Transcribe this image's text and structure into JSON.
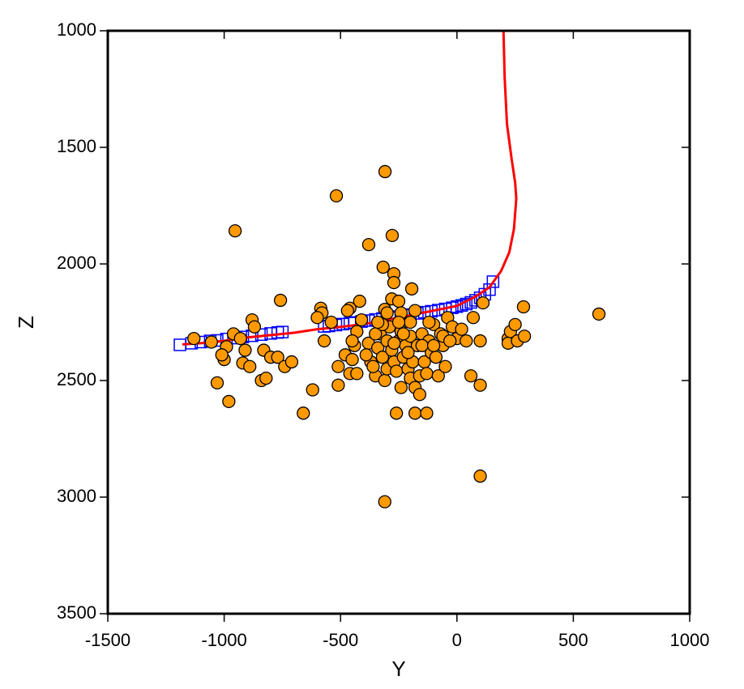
{
  "chart_data": {
    "type": "scatter",
    "x_label": "Y",
    "y_label": "Z",
    "xlim": [
      -1500,
      1000
    ],
    "ylim": [
      3500,
      1000
    ],
    "xticks": [
      -1500,
      -1000,
      -500,
      0,
      500,
      1000
    ],
    "yticks": [
      1000,
      1500,
      2000,
      2500,
      3000,
      3500
    ],
    "grid": false,
    "series": [
      {
        "marker": "square",
        "color": "#0000ff",
        "x": [
          -1190,
          -1140,
          -1100,
          -1060,
          -1030,
          -990,
          -960,
          -920,
          -880,
          -840,
          -800,
          -770,
          -750,
          -570,
          -550,
          -520,
          -490,
          -460,
          -440,
          -410,
          -380,
          -350,
          -320,
          -290,
          -260,
          -230,
          -200,
          -170,
          -140,
          -110,
          -80,
          -50,
          -20,
          0,
          20,
          40,
          60,
          80,
          100,
          120,
          140,
          155
        ],
        "values": [
          2347,
          2340,
          2335,
          2330,
          2328,
          2322,
          2318,
          2313,
          2308,
          2303,
          2298,
          2294,
          2292,
          2268,
          2266,
          2262,
          2258,
          2254,
          2251,
          2247,
          2243,
          2238,
          2234,
          2230,
          2226,
          2221,
          2217,
          2212,
          2207,
          2203,
          2198,
          2193,
          2188,
          2183,
          2178,
          2172,
          2165,
          2156,
          2145,
          2130,
          2110,
          2076
        ]
      },
      {
        "marker": "line",
        "color": "#ff0000",
        "x": [
          200,
          205,
          215,
          235,
          250,
          255,
          245,
          225,
          190,
          140,
          80,
          0,
          -100,
          -200,
          -300,
          -400,
          -500,
          -600,
          -700,
          -800,
          -900,
          -1000,
          -1100,
          -1180
        ],
        "values": [
          1000,
          1200,
          1400,
          1550,
          1650,
          1720,
          1850,
          1950,
          2030,
          2100,
          2140,
          2180,
          2200,
          2220,
          2240,
          2258,
          2270,
          2280,
          2295,
          2305,
          2315,
          2330,
          2340,
          2345
        ]
      },
      {
        "marker": "circle",
        "color": "#ff9900",
        "x": [
          -309,
          -518,
          -953,
          -379,
          -278,
          -317,
          -271,
          -271,
          -194,
          -758,
          112,
          286,
          610,
          -418,
          -280,
          -250,
          -585,
          -460,
          -310,
          -580,
          -240,
          -880,
          -1130,
          -1055,
          -960,
          -930,
          -990,
          -1000,
          -1010,
          -920,
          -890,
          -910,
          -870,
          -830,
          -800,
          -770,
          -740,
          -710,
          -840,
          -820,
          -1030,
          -980,
          -620,
          -660,
          -570,
          -510,
          -510,
          -480,
          -460,
          -430,
          -450,
          -440,
          -430,
          -410,
          -380,
          -370,
          -350,
          -340,
          -330,
          -320,
          -310,
          -300,
          -300,
          -290,
          -280,
          -270,
          -260,
          -260,
          -250,
          -240,
          -240,
          -230,
          -220,
          -210,
          -200,
          -200,
          -190,
          -180,
          -180,
          -170,
          -160,
          -160,
          -150,
          -140,
          -130,
          -130,
          -120,
          -110,
          -100,
          -90,
          -80,
          -70,
          -60,
          -50,
          -40,
          -20,
          0,
          20,
          40,
          60,
          70,
          100,
          100,
          100,
          220,
          220,
          230,
          250,
          260,
          290,
          -310,
          -200,
          -350,
          -390,
          -450,
          -470,
          -540,
          -600,
          -230,
          -210,
          -250,
          -300,
          -320,
          -150,
          -120,
          -60,
          -30,
          -100,
          -180,
          -270,
          -340,
          -360
        ],
        "values": [
          1604,
          1708,
          1858,
          1917,
          1878,
          2014,
          2042,
          2080,
          2107,
          2156,
          2167,
          2184,
          2215,
          2160,
          2150,
          2160,
          2190,
          2190,
          2195,
          2210,
          2210,
          2240,
          2320,
          2335,
          2300,
          2320,
          2355,
          2410,
          2390,
          2425,
          2440,
          2370,
          2270,
          2370,
          2400,
          2400,
          2440,
          2420,
          2500,
          2490,
          2510,
          2590,
          2540,
          2640,
          2330,
          2440,
          2520,
          2390,
          2470,
          2470,
          2410,
          2350,
          2290,
          2240,
          2340,
          2420,
          2480,
          2360,
          2300,
          2400,
          2500,
          2450,
          2330,
          2270,
          2370,
          2420,
          2460,
          2640,
          2330,
          2530,
          2290,
          2400,
          2350,
          2450,
          2490,
          2310,
          2420,
          2530,
          2640,
          2350,
          2560,
          2480,
          2300,
          2420,
          2640,
          2470,
          2330,
          2380,
          2260,
          2400,
          2480,
          2300,
          2350,
          2440,
          2230,
          2270,
          2320,
          2280,
          2330,
          2480,
          2230,
          2330,
          2520,
          2910,
          2320,
          2340,
          2290,
          2260,
          2330,
          2310,
          3020,
          2250,
          2300,
          2390,
          2330,
          2200,
          2250,
          2230,
          2300,
          2380,
          2250,
          2210,
          2260,
          2350,
          2250,
          2310,
          2330,
          2350,
          2200,
          2340,
          2250,
          2440
        ]
      }
    ]
  }
}
